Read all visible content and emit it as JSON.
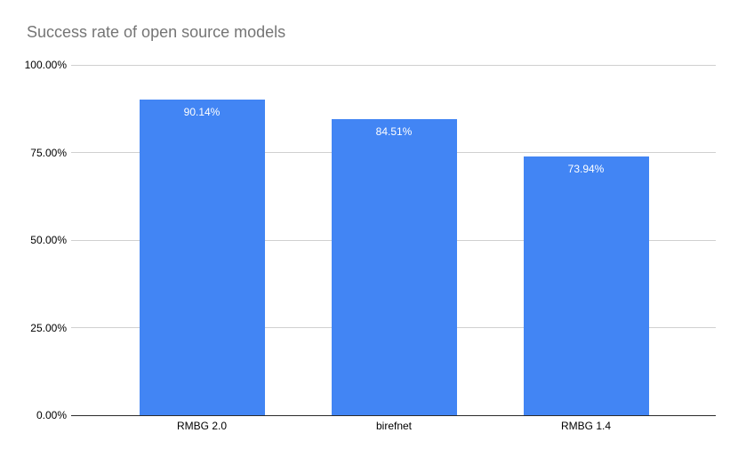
{
  "chart_data": {
    "type": "bar",
    "title": "Success rate of open source models",
    "categories": [
      "RMBG 2.0",
      "birefnet",
      "RMBG 1.4"
    ],
    "values": [
      90.14,
      84.51,
      73.94
    ],
    "value_labels": [
      "90.14%",
      "84.51%",
      "73.94%"
    ],
    "xlabel": "",
    "ylabel": "",
    "ylim": [
      0,
      100
    ],
    "y_ticks": [
      {
        "value": 100,
        "label": "100.00%"
      },
      {
        "value": 75,
        "label": "75.00%"
      },
      {
        "value": 50,
        "label": "50.00%"
      },
      {
        "value": 25,
        "label": "25.00%"
      },
      {
        "value": 0,
        "label": "0.00%"
      }
    ],
    "grid": true,
    "legend": "none",
    "colors": {
      "bar": "#4285F4",
      "title": "#757575",
      "gridline": "#D0D0D0",
      "axis_line": "#2B2B2B",
      "tick_label": "#000000",
      "value_label": "#FFFFFF",
      "background": "#FFFFFF"
    }
  }
}
